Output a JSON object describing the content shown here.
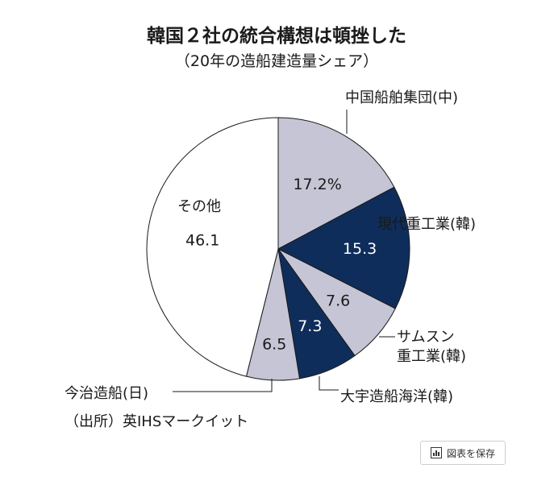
{
  "chart_data": {
    "type": "pie",
    "title": "韓国２社の統合構想は頓挫した",
    "subtitle": "（20年の造船建造量シェア）",
    "source": "（出所）英IHSマークイット",
    "slices": [
      {
        "name": "中国船舶集団(中)",
        "value": 17.2,
        "value_label": "17.2%",
        "color": "#c5c5d6",
        "text_color": "#1a1a1a"
      },
      {
        "name": "現代重工業(韓)",
        "value": 15.3,
        "value_label": "15.3",
        "color": "#0f2d5a",
        "text_color": "#ffffff"
      },
      {
        "name": "サムスン 重工業(韓)",
        "name_lines": [
          "サムスン",
          "重工業(韓)"
        ],
        "value": 7.6,
        "value_label": "7.6",
        "color": "#c5c5d6",
        "text_color": "#1a1a1a"
      },
      {
        "name": "大宇造船海洋(韓)",
        "value": 7.3,
        "value_label": "7.3",
        "color": "#0f2d5a",
        "text_color": "#ffffff"
      },
      {
        "name": "今治造船(日)",
        "value": 6.5,
        "value_label": "6.5",
        "color": "#c5c5d6",
        "text_color": "#1a1a1a"
      },
      {
        "name": "その他",
        "value": 46.1,
        "value_label": "46.1",
        "color": "#ffffff",
        "text_color": "#1a1a1a"
      }
    ]
  },
  "save_button": {
    "label": "図表を保存",
    "icon": "bar-chart-icon"
  }
}
